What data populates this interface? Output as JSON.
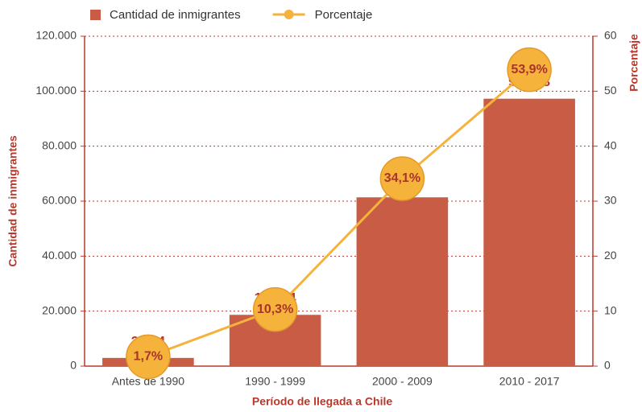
{
  "chart_data": {
    "type": "bar",
    "xlabel": "Período de llegada a Chile",
    "ylabel": "Cantidad de inmigrantes",
    "y2label": "Porcentaje",
    "categories": [
      "Antes de 1990",
      "1990 - 1999",
      "2000 - 2009",
      "2010 - 2017"
    ],
    "series": [
      {
        "name": "Cantidad de inmigrantes",
        "type": "bar",
        "color": "#c95c45",
        "axis": "y",
        "values": [
          2984,
          18654,
          61394,
          97268
        ],
        "value_labels": [
          "2.984",
          "18.654",
          "61.394",
          "97.268"
        ]
      },
      {
        "name": "Porcentaje",
        "type": "line",
        "color": "#f6b33c",
        "axis": "y2",
        "values": [
          1.7,
          10.3,
          34.1,
          53.9
        ],
        "value_labels": [
          "1,7%",
          "10,3%",
          "34,1%",
          "53,9%"
        ]
      }
    ],
    "ylim": [
      0,
      120000
    ],
    "yticks": [
      0,
      {
        "value": 20000,
        "label": "20.000"
      },
      {
        "value": 40000,
        "label": "40.000"
      },
      {
        "value": 60000,
        "label": "60.000"
      },
      {
        "value": 80000,
        "label": "80.000"
      },
      {
        "value": 100000,
        "label": "100.000"
      },
      {
        "value": 120000,
        "label": "120.000"
      }
    ],
    "y2lim": [
      0,
      60
    ],
    "y2ticks": [
      0,
      10,
      20,
      30,
      40,
      50,
      60
    ],
    "grid": true,
    "legend": "top"
  }
}
